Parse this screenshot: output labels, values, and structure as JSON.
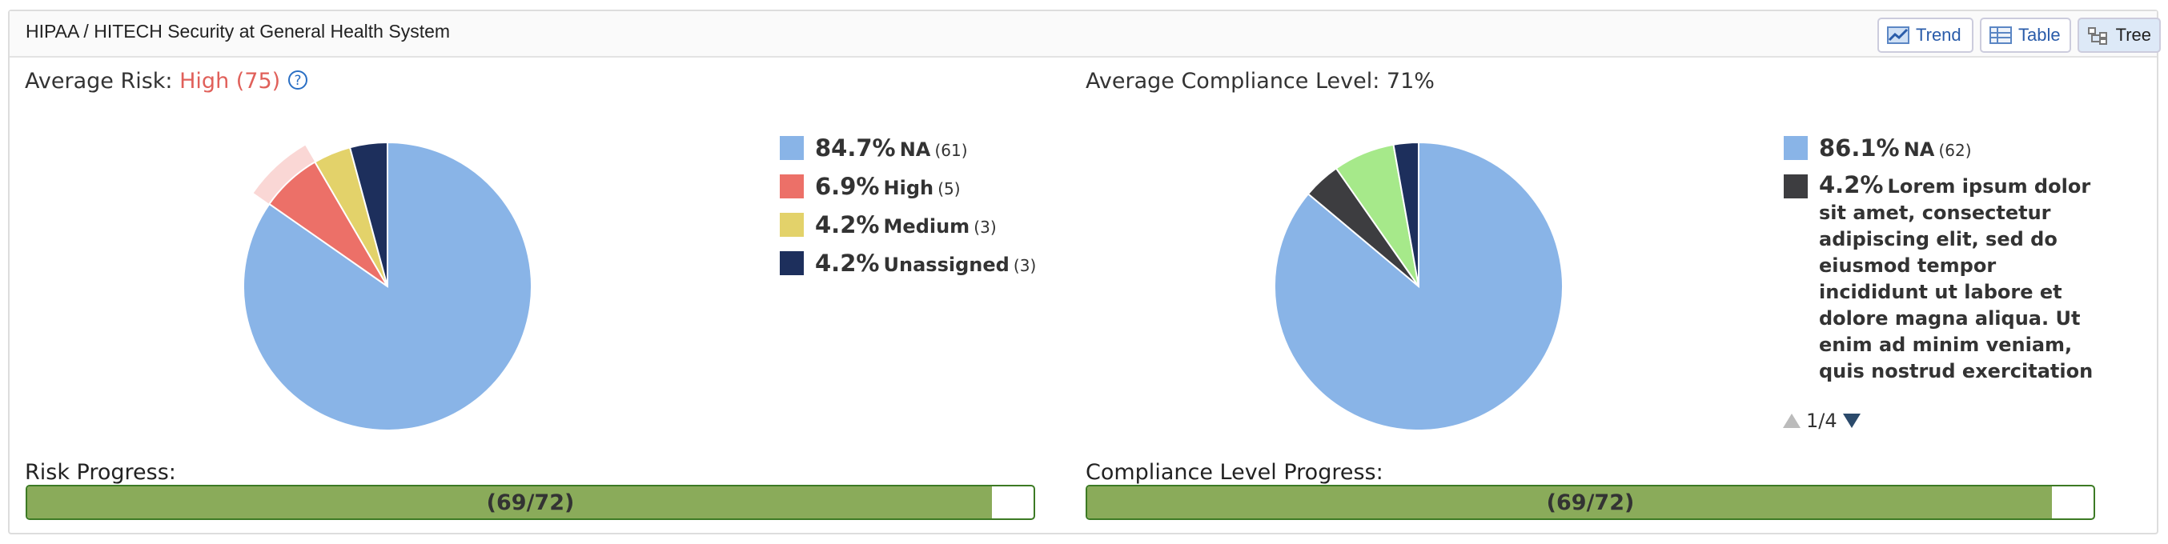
{
  "header": {
    "title": "HIPAA / HITECH Security at General Health System",
    "buttons": [
      "Trend",
      "Table",
      "Tree"
    ]
  },
  "help_icon": "?",
  "chart_data": [
    {
      "type": "pie",
      "title": "Average Risk:",
      "subtitle": "High (75)",
      "categories": [
        "NA",
        "High",
        "Medium",
        "Unassigned"
      ],
      "values": [
        84.7,
        6.9,
        4.2,
        4.2
      ],
      "value_labels": [
        "84.7%",
        "6.9%",
        "4.2%",
        "4.2%"
      ],
      "count_labels": [
        "(61)",
        "(5)",
        "(3)",
        "(3)"
      ],
      "colors": [
        "#89b4e7",
        "#ec7068",
        "#e3d26a",
        "#1d2f5c"
      ],
      "highlight": 1
    },
    {
      "type": "pie",
      "title": "Average Compliance Level: 71%",
      "categories": [
        "NA",
        "Lorem ipsum dolor sit amet, consectetur adipiscing elit, sed do eiusmod tempor incididunt ut labore et dolore magna aliqua. Ut enim ad minim veniam, quis nostrud exercitation ullamco laboris nisi ut aliquip ex ea commodo consequat",
        null,
        null
      ],
      "values": [
        86.1,
        4.2,
        6.9,
        2.8
      ],
      "value_labels": [
        "86.1%",
        "4.2%",
        null,
        null
      ],
      "count_labels": [
        "(62)",
        "(3)",
        null,
        null
      ],
      "colors": [
        "#89b4e7",
        "#3d3d40",
        "#a6e98a",
        "#1d2f5c"
      ],
      "legend_page": "1/4"
    }
  ],
  "progress": [
    {
      "label": "Risk Progress:",
      "value": 69,
      "max": 72,
      "text": "(69/72)"
    },
    {
      "label": "Compliance Level Progress:",
      "value": 69,
      "max": 72,
      "text": "(69/72)"
    }
  ]
}
